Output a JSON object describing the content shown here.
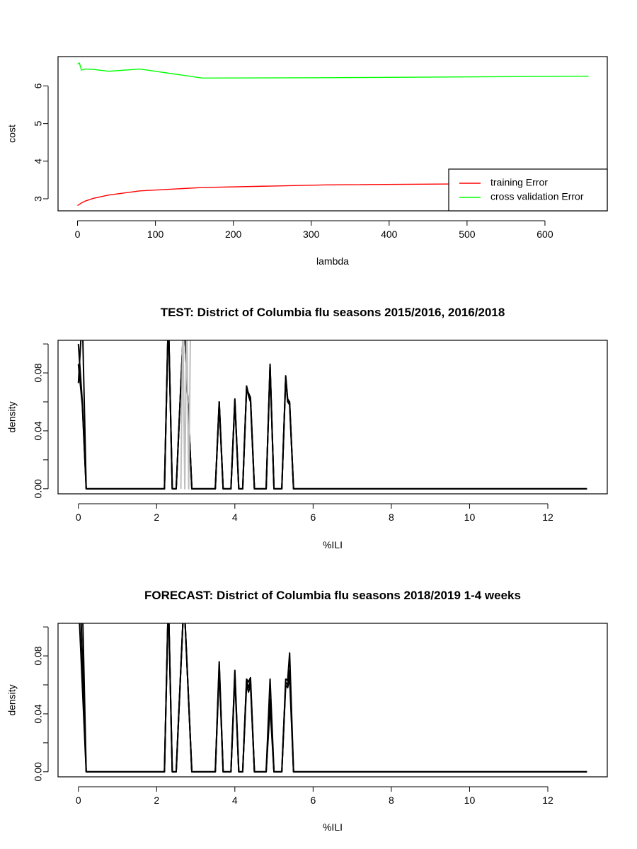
{
  "chart_data": [
    {
      "type": "line",
      "title": "",
      "xlabel": "lambda",
      "ylabel": "cost",
      "xlim": [
        -25,
        680
      ],
      "ylim": [
        2.68,
        6.78
      ],
      "xticks": [
        0,
        100,
        200,
        300,
        400,
        500,
        600
      ],
      "yticks": [
        3,
        4,
        5,
        6
      ],
      "grid": false,
      "legend": "bottom-right",
      "series": [
        {
          "name": "training Error",
          "color": "#ff0000",
          "x": [
            0,
            5,
            10,
            20,
            40,
            80,
            160,
            320,
            656
          ],
          "y": [
            2.82,
            2.89,
            2.94,
            3.01,
            3.1,
            3.21,
            3.3,
            3.37,
            3.42
          ]
        },
        {
          "name": "cross validation Error",
          "color": "#00ff00",
          "x": [
            0,
            2.5,
            5,
            10,
            20,
            40,
            80,
            160,
            320,
            656
          ],
          "y": [
            6.58,
            6.61,
            6.42,
            6.45,
            6.44,
            6.39,
            6.45,
            6.21,
            6.22,
            6.26
          ]
        }
      ]
    },
    {
      "type": "line",
      "title": "TEST: District of Columbia  flu seasons 2015/2016, 2016/2018",
      "xlabel": "%ILI",
      "ylabel": "density",
      "xlim": [
        -0.52,
        13.52
      ],
      "ylim": [
        -0.0035,
        0.1025
      ],
      "xticks": [
        0,
        2,
        4,
        6,
        8,
        10,
        12
      ],
      "yticks": [
        0,
        0.02,
        0.04,
        0.06,
        0.08,
        0.1
      ],
      "yticklabels": [
        "0.00",
        "",
        "0.04",
        "",
        "0.08",
        ""
      ],
      "grid": false,
      "legend": "none",
      "series": [
        {
          "color": "#000000",
          "x": [
            0,
            0.1,
            0.2,
            2.2,
            2.3,
            2.4,
            2.5,
            2.7,
            2.9,
            3.5,
            3.6,
            3.7,
            3.9,
            4.0,
            4.1,
            4.2,
            4.3,
            4.35,
            4.4,
            4.5,
            4.8,
            4.9,
            5.0,
            5.2,
            5.3,
            5.35,
            5.4,
            5.5,
            13
          ],
          "y": [
            0.1,
            0.06,
            0,
            0,
            0.12,
            0,
            0,
            0.12,
            0,
            0,
            0.06,
            0,
            0,
            0.062,
            0,
            0,
            0.071,
            0.065,
            0.062,
            0,
            0,
            0.086,
            0,
            0,
            0.078,
            0.062,
            0.06,
            0,
            0
          ]
        },
        {
          "color": "#000000",
          "x": [
            0,
            0.1,
            0.2,
            2.2,
            2.3,
            2.4,
            2.5,
            2.7,
            2.9,
            3.5,
            3.6,
            3.7,
            3.9,
            4.0,
            4.1,
            4.2,
            4.3,
            4.35,
            4.4,
            4.5,
            4.8,
            4.9,
            5.0,
            5.2,
            5.3,
            5.35,
            5.4,
            5.5,
            13
          ],
          "y": [
            0.086,
            0.058,
            0,
            0,
            0.12,
            0,
            0,
            0.12,
            0,
            0,
            0.058,
            0,
            0,
            0.06,
            0,
            0,
            0.07,
            0.064,
            0.06,
            0,
            0,
            0.084,
            0,
            0,
            0.076,
            0.06,
            0.058,
            0,
            0
          ]
        },
        {
          "color": "#000000",
          "x": [
            0,
            0.1,
            0.2,
            2.2,
            2.3,
            2.4,
            2.5,
            2.7,
            2.9,
            3.5,
            3.6,
            3.7,
            3.9,
            4.0,
            4.1,
            4.2,
            4.3,
            4.35,
            4.4,
            4.5,
            4.8,
            4.9,
            5.0,
            5.2,
            5.3,
            5.35,
            5.4,
            5.5,
            13
          ],
          "y": [
            0.073,
            0.12,
            0,
            0,
            0.12,
            0,
            0,
            0.12,
            0,
            0,
            0.06,
            0,
            0,
            0.061,
            0,
            0,
            0.069,
            0.066,
            0.063,
            0,
            0,
            0.085,
            0,
            0,
            0.077,
            0.061,
            0.059,
            0,
            0
          ]
        },
        {
          "color": "#bebebe",
          "x": [
            2.62,
            2.67,
            2.72,
            2.77,
            2.82,
            2.87
          ],
          "y": [
            0,
            0.12,
            0,
            0.12,
            0,
            0.12
          ]
        }
      ]
    },
    {
      "type": "line",
      "title": "FORECAST: District of Columbia flu seasons 2018/2019 1-4 weeks",
      "xlabel": "%ILI",
      "ylabel": "density",
      "xlim": [
        -0.52,
        13.52
      ],
      "ylim": [
        -0.0035,
        0.1025
      ],
      "xticks": [
        0,
        2,
        4,
        6,
        8,
        10,
        12
      ],
      "yticks": [
        0,
        0.02,
        0.04,
        0.06,
        0.08,
        0.1
      ],
      "yticklabels": [
        "0.00",
        "",
        "0.04",
        "",
        "0.08",
        ""
      ],
      "grid": false,
      "legend": "none",
      "series": [
        {
          "color": "#000000",
          "x": [
            0,
            0.2,
            2.2,
            2.3,
            2.4,
            2.5,
            2.7,
            2.9,
            3.5,
            3.6,
            3.7,
            3.9,
            4.0,
            4.1,
            4.2,
            4.3,
            4.35,
            4.4,
            4.5,
            4.8,
            4.9,
            5.0,
            5.2,
            5.3,
            5.35,
            5.4,
            5.5,
            13
          ],
          "y": [
            0.12,
            0,
            0,
            0.12,
            0,
            0,
            0.12,
            0,
            0,
            0.076,
            0,
            0,
            0.07,
            0,
            0,
            0.064,
            0.062,
            0.065,
            0,
            0,
            0.064,
            0,
            0,
            0.064,
            0.063,
            0.082,
            0,
            0
          ]
        },
        {
          "color": "#000000",
          "x": [
            0.05,
            0.2,
            2.2,
            2.3,
            2.4,
            2.5,
            2.7,
            2.9,
            3.5,
            3.6,
            3.7,
            3.9,
            4.0,
            4.1,
            4.2,
            4.3,
            4.35,
            4.4,
            4.5,
            4.8,
            4.9,
            5.0,
            5.2,
            5.3,
            5.35,
            5.4,
            5.5,
            13
          ],
          "y": [
            0.12,
            0,
            0,
            0.12,
            0,
            0,
            0.12,
            0,
            0,
            0.074,
            0,
            0,
            0.068,
            0,
            0,
            0.063,
            0.058,
            0.063,
            0,
            0,
            0.05,
            0,
            0,
            0.062,
            0.06,
            0.07,
            0,
            0
          ]
        },
        {
          "color": "#000000",
          "x": [
            0.1,
            0.2,
            2.2,
            2.3,
            2.4,
            2.5,
            2.7,
            2.9,
            3.5,
            3.6,
            3.7,
            3.9,
            4.0,
            4.1,
            4.2,
            4.3,
            4.35,
            4.4,
            4.5,
            4.8,
            4.9,
            5.0,
            5.2,
            5.3,
            5.35,
            5.4,
            5.5,
            13
          ],
          "y": [
            0.12,
            0,
            0,
            0.12,
            0,
            0,
            0.12,
            0,
            0,
            0.07,
            0,
            0,
            0.065,
            0,
            0,
            0.06,
            0.055,
            0.06,
            0,
            0,
            0.045,
            0,
            0,
            0.06,
            0.058,
            0.065,
            0,
            0
          ]
        }
      ]
    }
  ]
}
